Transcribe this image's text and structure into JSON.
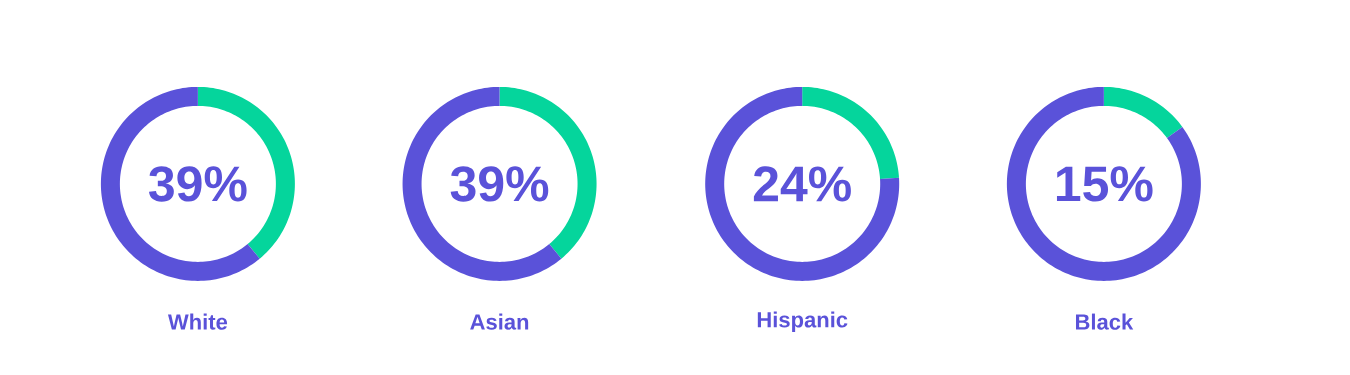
{
  "chart_data": [
    {
      "type": "donut",
      "title": "White",
      "categories": [
        null,
        null
      ],
      "values": [
        39,
        61
      ],
      "colors": [
        "#05d59c",
        "#5a52d9"
      ],
      "annotations": [
        "39%"
      ]
    },
    {
      "type": "donut",
      "title": "Asian",
      "categories": [
        null,
        null
      ],
      "values": [
        39,
        61
      ],
      "colors": [
        "#05d59c",
        "#5a52d9"
      ],
      "annotations": [
        "39%"
      ]
    },
    {
      "type": "donut",
      "title": "Hispanic",
      "categories": [
        null,
        null
      ],
      "values": [
        24,
        76
      ],
      "colors": [
        "#05d59c",
        "#5a52d9"
      ],
      "annotations": [
        "24%"
      ]
    },
    {
      "type": "donut",
      "title": "Black",
      "categories": [
        null,
        null
      ],
      "values": [
        15,
        85
      ],
      "colors": [
        "#05d59c",
        "#5a52d9"
      ],
      "annotations": [
        "15%"
      ]
    }
  ]
}
